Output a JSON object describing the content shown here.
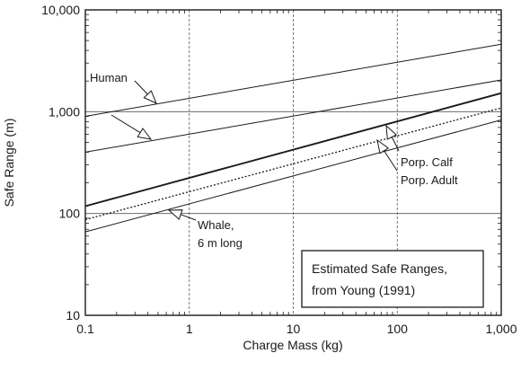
{
  "chart_data": {
    "type": "line",
    "title": "",
    "xlabel": "Charge Mass (kg)",
    "ylabel": "Safe Range (m)",
    "xscale": "log",
    "yscale": "log",
    "xlim": [
      0.1,
      1000
    ],
    "ylim": [
      10,
      10000
    ],
    "x_ticks": [
      {
        "value": 0.1,
        "label": "0.1"
      },
      {
        "value": 1,
        "label": "1"
      },
      {
        "value": 10,
        "label": "10"
      },
      {
        "value": 100,
        "label": "100"
      },
      {
        "value": 1000,
        "label": "1,000"
      }
    ],
    "y_ticks": [
      {
        "value": 10,
        "label": "10"
      },
      {
        "value": 100,
        "label": "100"
      },
      {
        "value": 1000,
        "label": "1,000"
      },
      {
        "value": 10000,
        "label": "10,000"
      }
    ],
    "grid": true,
    "series": [
      {
        "id": "human-upper",
        "style": "thin",
        "points": [
          [
            0.1,
            900
          ],
          [
            1000,
            4600
          ]
        ]
      },
      {
        "id": "human-lower",
        "style": "thin",
        "points": [
          [
            0.1,
            400
          ],
          [
            1000,
            2050
          ]
        ]
      },
      {
        "id": "porp-calf",
        "style": "thick",
        "points": [
          [
            0.1,
            118
          ],
          [
            1000,
            1520
          ]
        ]
      },
      {
        "id": "porp-adult",
        "style": "dotted",
        "points": [
          [
            0.1,
            87
          ],
          [
            1000,
            1090
          ]
        ]
      },
      {
        "id": "whale",
        "style": "thin",
        "points": [
          [
            0.1,
            66
          ],
          [
            1000,
            830
          ]
        ]
      }
    ],
    "annotations": [
      {
        "id": "human",
        "text": "Human",
        "lines": [
          "Human"
        ]
      },
      {
        "id": "porp-calf",
        "text": "Porp. Calf",
        "lines": [
          "Porp. Calf"
        ]
      },
      {
        "id": "porp-adult",
        "text": "Porp. Adult",
        "lines": [
          "Porp. Adult"
        ]
      },
      {
        "id": "whale",
        "text": "Whale, 6 m long",
        "lines": [
          "Whale,",
          "6 m long"
        ]
      }
    ],
    "note_box": {
      "lines": [
        "Estimated Safe Ranges,",
        "from Young (1991)"
      ]
    },
    "colors": {
      "ink": "#1a1a1a",
      "grid": "#555555",
      "background": "#ffffff"
    }
  }
}
